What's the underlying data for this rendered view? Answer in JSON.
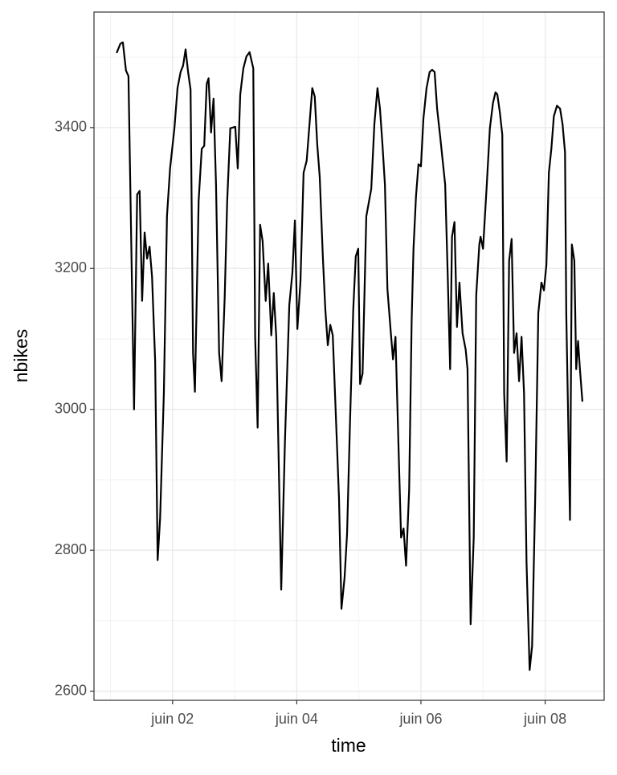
{
  "chart_data": {
    "type": "line",
    "xlabel": "time",
    "ylabel": "nbikes",
    "x": [
      1.1,
      1.16,
      1.2,
      1.25,
      1.29,
      1.38,
      1.43,
      1.47,
      1.51,
      1.55,
      1.59,
      1.63,
      1.67,
      1.72,
      1.76,
      1.8,
      1.86,
      1.91,
      1.96,
      2.03,
      2.08,
      2.13,
      2.17,
      2.21,
      2.25,
      2.29,
      2.33,
      2.36,
      2.42,
      2.47,
      2.51,
      2.55,
      2.58,
      2.62,
      2.66,
      2.7,
      2.75,
      2.79,
      2.84,
      2.88,
      2.93,
      2.97,
      3.01,
      3.05,
      3.09,
      3.14,
      3.19,
      3.24,
      3.3,
      3.33,
      3.37,
      3.41,
      3.45,
      3.5,
      3.54,
      3.59,
      3.63,
      3.67,
      3.75,
      3.81,
      3.88,
      3.93,
      3.97,
      4.01,
      4.06,
      4.11,
      4.16,
      4.21,
      4.25,
      4.29,
      4.33,
      4.37,
      4.42,
      4.46,
      4.5,
      4.54,
      4.58,
      4.64,
      4.68,
      4.72,
      4.77,
      4.81,
      4.86,
      4.91,
      4.95,
      4.99,
      5.02,
      5.06,
      5.12,
      5.2,
      5.25,
      5.3,
      5.34,
      5.38,
      5.42,
      5.46,
      5.51,
      5.55,
      5.59,
      5.64,
      5.68,
      5.72,
      5.76,
      5.81,
      5.85,
      5.88,
      5.92,
      5.96,
      6.0,
      6.04,
      6.09,
      6.14,
      6.18,
      6.22,
      6.26,
      6.31,
      6.35,
      6.39,
      6.43,
      6.47,
      6.5,
      6.54,
      6.58,
      6.62,
      6.67,
      6.72,
      6.75,
      6.8,
      6.85,
      6.89,
      6.94,
      6.96,
      7.0,
      7.06,
      7.11,
      7.16,
      7.2,
      7.23,
      7.27,
      7.31,
      7.34,
      7.38,
      7.42,
      7.46,
      7.5,
      7.54,
      7.58,
      7.62,
      7.66,
      7.7,
      7.75,
      7.79,
      7.84,
      7.89,
      7.94,
      7.98,
      8.02,
      8.06,
      8.1,
      8.14,
      8.19,
      8.24,
      8.28,
      8.32,
      8.34,
      8.4,
      8.43,
      8.47,
      8.5,
      8.53,
      8.56,
      8.6
    ],
    "values": [
      3506,
      3519,
      3521,
      3481,
      3473,
      3000,
      3305,
      3310,
      3154,
      3251,
      3214,
      3231,
      3188,
      3068,
      2786,
      2846,
      3023,
      3274,
      3342,
      3399,
      3456,
      3479,
      3488,
      3511,
      3479,
      3454,
      3080,
      3025,
      3296,
      3370,
      3374,
      3462,
      3470,
      3393,
      3441,
      3319,
      3080,
      3040,
      3160,
      3296,
      3399,
      3400,
      3401,
      3342,
      3447,
      3484,
      3501,
      3507,
      3484,
      3103,
      2974,
      3262,
      3239,
      3154,
      3207,
      3105,
      3165,
      3103,
      2744,
      2955,
      3148,
      3194,
      3268,
      3114,
      3182,
      3336,
      3353,
      3410,
      3456,
      3444,
      3376,
      3330,
      3217,
      3142,
      3091,
      3120,
      3105,
      2967,
      2875,
      2717,
      2761,
      2823,
      2989,
      3142,
      3217,
      3228,
      3036,
      3051,
      3274,
      3313,
      3405,
      3456,
      3427,
      3376,
      3319,
      3171,
      3114,
      3071,
      3103,
      2943,
      2818,
      2831,
      2778,
      2886,
      3125,
      3228,
      3302,
      3348,
      3345,
      3413,
      3456,
      3479,
      3482,
      3479,
      3427,
      3387,
      3353,
      3319,
      3194,
      3057,
      3245,
      3266,
      3117,
      3180,
      3108,
      3085,
      3057,
      2695,
      2818,
      3162,
      3234,
      3245,
      3228,
      3319,
      3399,
      3435,
      3450,
      3447,
      3422,
      3390,
      3023,
      2926,
      3211,
      3242,
      3080,
      3108,
      3040,
      3103,
      3023,
      2783,
      2630,
      2664,
      2875,
      3137,
      3180,
      3169,
      3205,
      3336,
      3370,
      3416,
      3431,
      3427,
      3405,
      3365,
      3137,
      2843,
      3234,
      3211,
      3057,
      3097,
      3057,
      3011
    ],
    "color": "#000000",
    "xlim": [
      0.735,
      8.95
    ],
    "ylim": [
      2587,
      3564
    ],
    "xticks": [
      {
        "value": 2,
        "label": "juin 02"
      },
      {
        "value": 4,
        "label": "juin 04"
      },
      {
        "value": 6,
        "label": "juin 06"
      },
      {
        "value": 8,
        "label": "juin 08"
      }
    ],
    "yticks": [
      2600,
      2800,
      3000,
      3200,
      3400
    ],
    "xminor": [
      1,
      3,
      5,
      7
    ],
    "yminor": [
      2700,
      2900,
      3100,
      3300,
      3500
    ],
    "grid": true
  }
}
